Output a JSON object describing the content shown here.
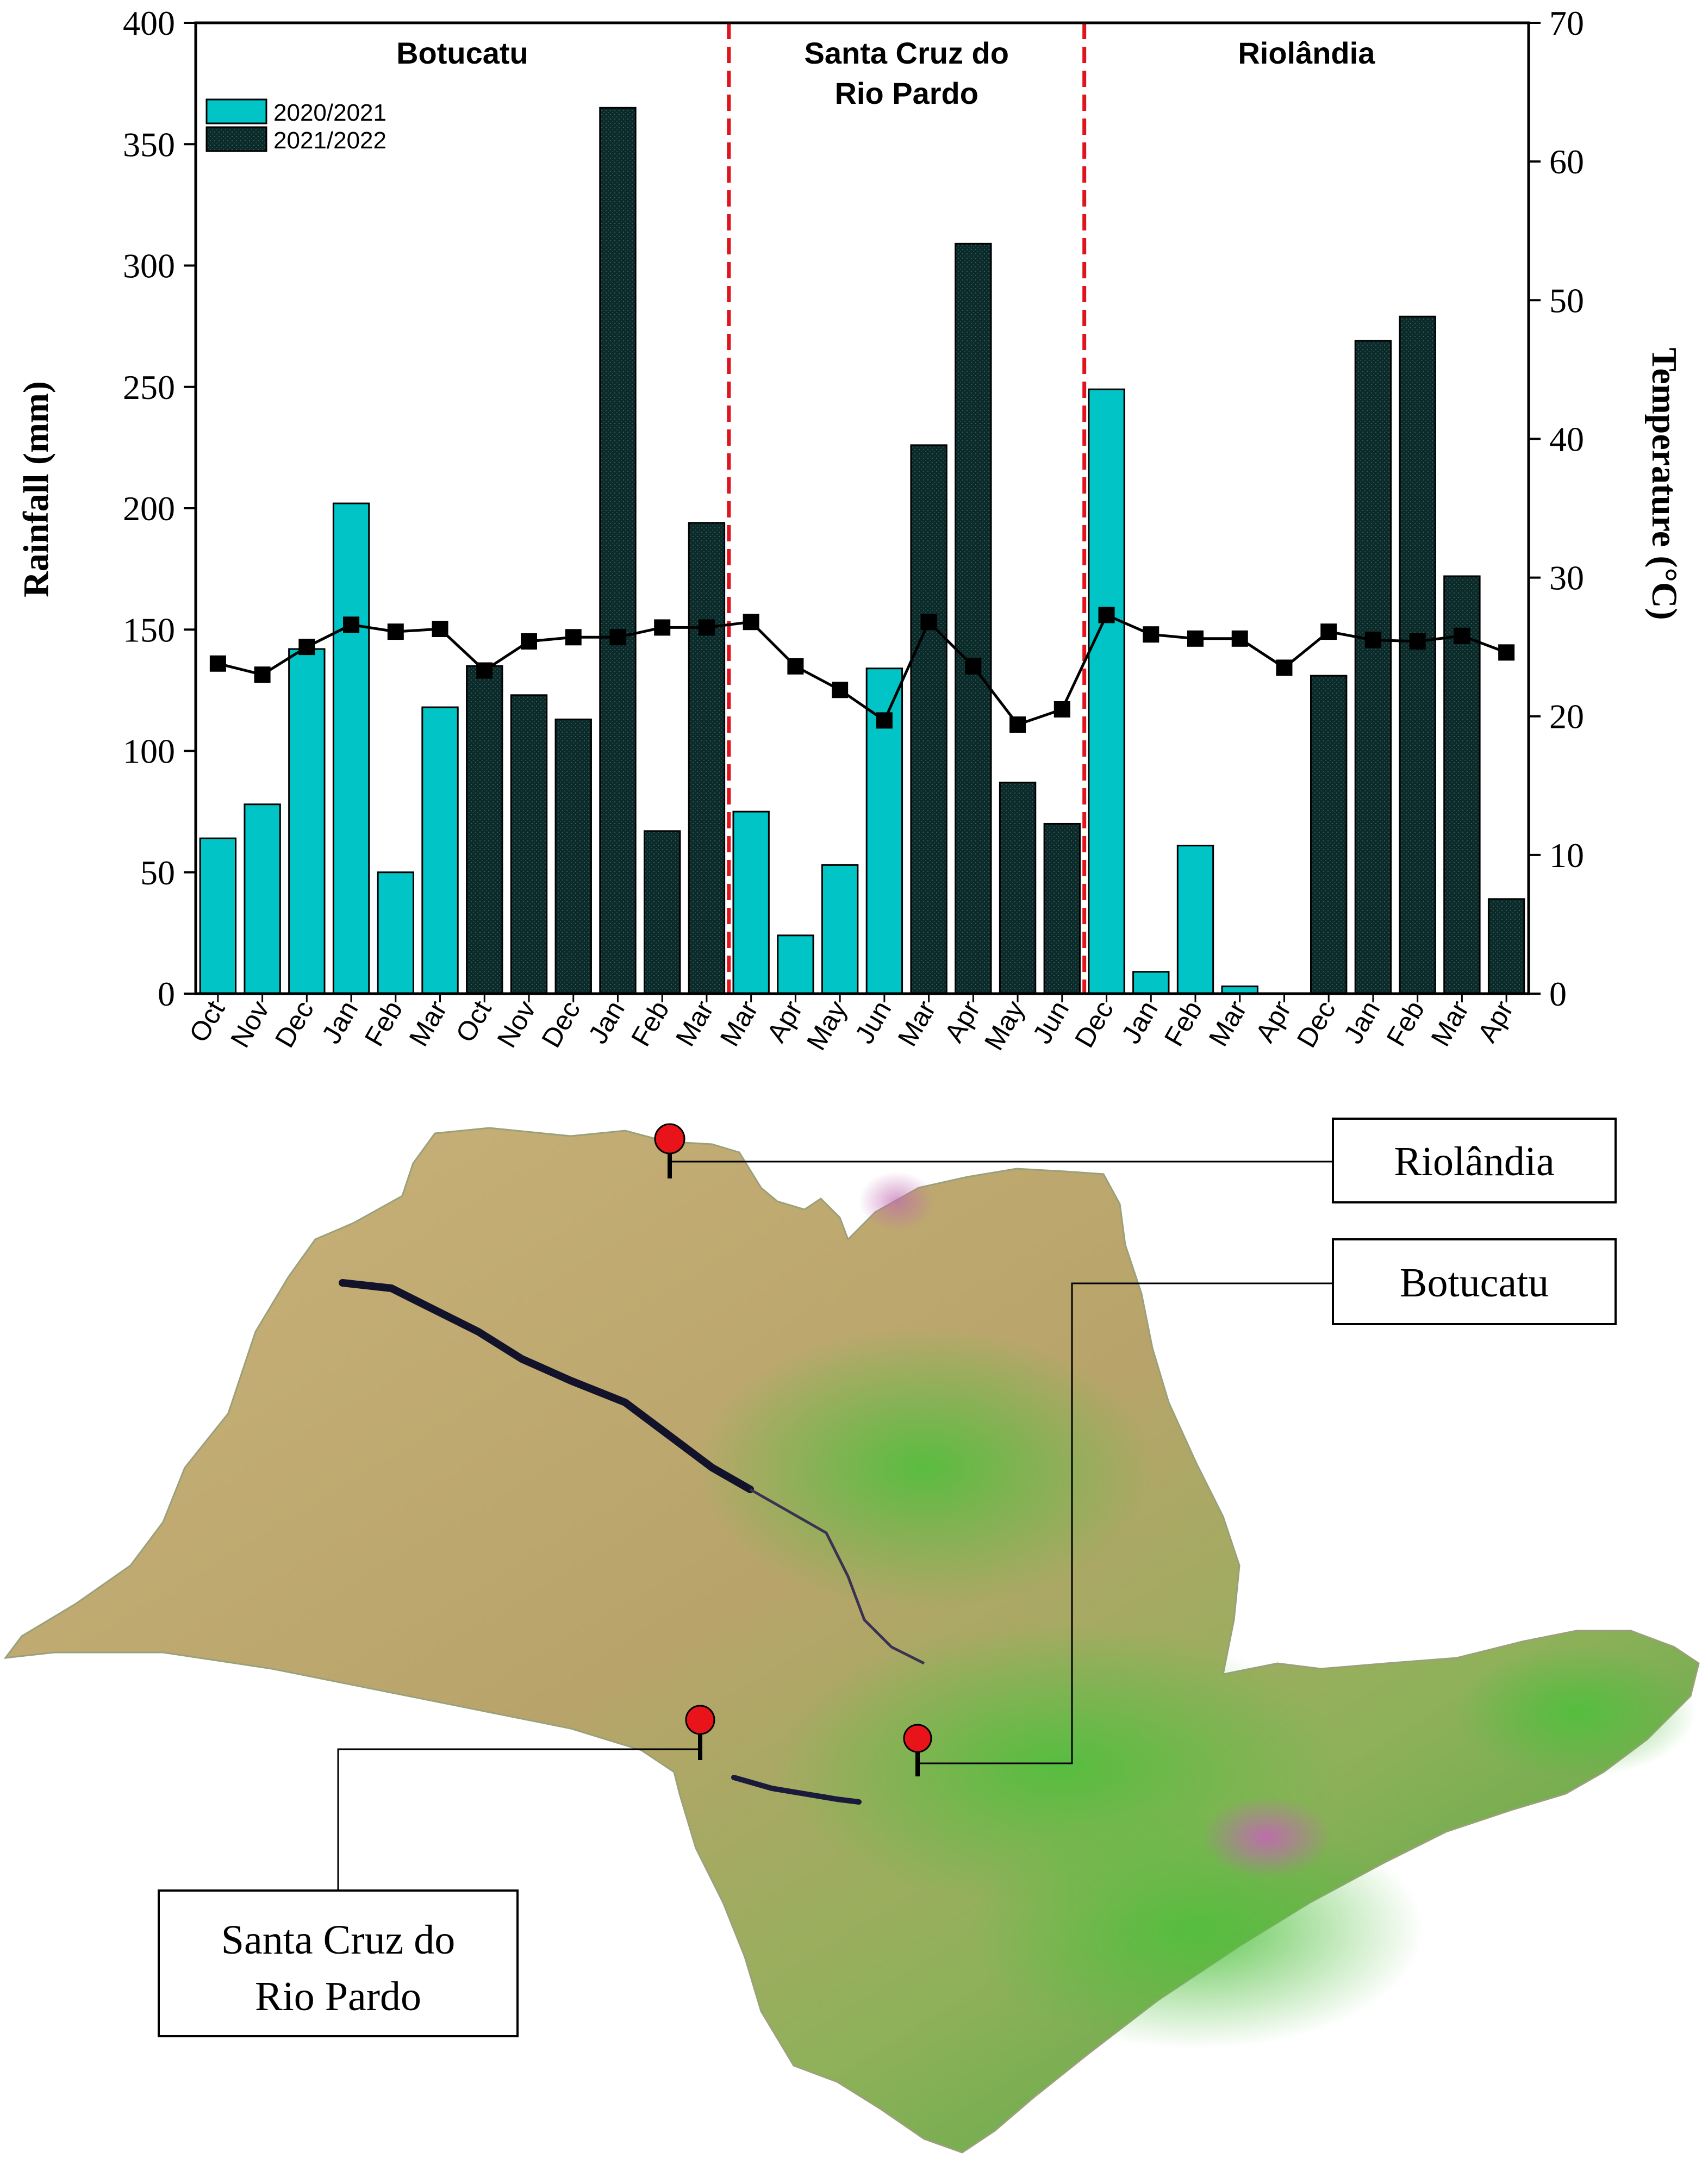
{
  "chart_data": {
    "type": "bar",
    "title": "",
    "ylabel": "Rainfall (mm)",
    "y2label": "Temperature (°C)",
    "ylim": [
      0,
      400
    ],
    "y2lim": [
      0,
      70
    ],
    "yticks": [
      0,
      50,
      100,
      150,
      200,
      250,
      300,
      350,
      400
    ],
    "y2ticks": [
      0,
      10,
      20,
      30,
      40,
      50,
      60,
      70
    ],
    "categories": [
      "Oct",
      "Nov",
      "Dec",
      "Jan",
      "Feb",
      "Mar",
      "Oct",
      "Nov",
      "Dec",
      "Jan",
      "Feb",
      "Mar",
      "Mar",
      "Apr",
      "May",
      "Jun",
      "Mar",
      "Apr",
      "May",
      "Jun",
      "Dec",
      "Jan",
      "Feb",
      "Mar",
      "Apr",
      "Dec",
      "Jan",
      "Feb",
      "Mar",
      "Apr"
    ],
    "bar_season": [
      0,
      0,
      0,
      0,
      0,
      0,
      1,
      1,
      1,
      1,
      1,
      1,
      0,
      0,
      0,
      0,
      1,
      1,
      1,
      1,
      0,
      0,
      0,
      0,
      0,
      1,
      1,
      1,
      1,
      1
    ],
    "series": [
      {
        "name": "Rainfall",
        "type": "bar",
        "values": [
          64,
          78,
          142,
          202,
          50,
          118,
          135,
          123,
          113,
          365,
          67,
          194,
          75,
          24,
          53,
          134,
          226,
          309,
          87,
          70,
          249,
          9,
          61,
          3,
          0,
          131,
          269,
          279,
          172,
          39
        ]
      },
      {
        "name": "Temperature",
        "type": "line",
        "axis": "right",
        "values": [
          23.8,
          23,
          25,
          26.6,
          26.1,
          26.3,
          23.3,
          25.4,
          25.7,
          25.7,
          26.4,
          26.4,
          26.8,
          23.6,
          21.9,
          19.7,
          26.8,
          23.6,
          19.4,
          20.5,
          27.3,
          25.9,
          25.6,
          25.6,
          23.5,
          26.1,
          25.5,
          25.4,
          25.8,
          24.6
        ]
      }
    ],
    "legend": {
      "placement": "top-left",
      "entries": [
        "2020/2021",
        "2021/2022"
      ]
    },
    "sites": [
      {
        "name": "Botucatu",
        "from": 0,
        "to": 11
      },
      {
        "name_lines": [
          "Santa Cruz do",
          "Rio Pardo"
        ],
        "from": 12,
        "to": 19
      },
      {
        "name": "Riolândia",
        "from": 20,
        "to": 29
      }
    ],
    "colors": {
      "season_1": "#00c4c6",
      "season_2": "#0b2a2a",
      "divider": "#e0141c",
      "line": "#000000"
    }
  },
  "map": {
    "callouts": {
      "riolandia": "Riolândia",
      "botucatu": "Botucatu",
      "santa_cruz": [
        "Santa Cruz do",
        "Rio Pardo"
      ]
    },
    "marker_color": "#e8141a"
  }
}
